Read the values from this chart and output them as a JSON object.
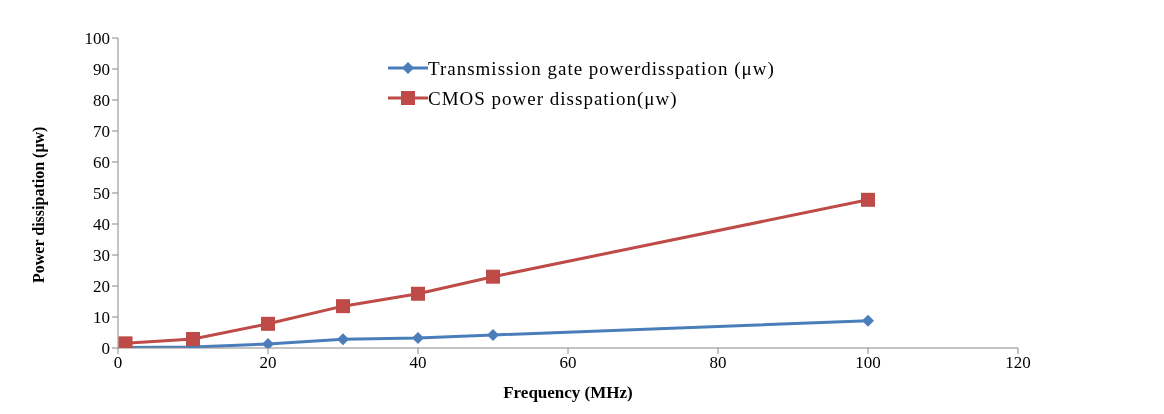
{
  "chart_data": {
    "type": "line",
    "xlabel": "Frequency (MHz)",
    "ylabel": "Power dissipation (μw)",
    "x": [
      1,
      10,
      20,
      30,
      40,
      50,
      100
    ],
    "series": [
      {
        "name": "Transmission gate powerdisspation (μw)",
        "color": "#4a7ebb",
        "marker": "diamond",
        "values": [
          0.2,
          0.3,
          1.3,
          2.8,
          3.2,
          4.2,
          8.8
        ]
      },
      {
        "name": "CMOS power disspation(μw)",
        "color": "#be4b48",
        "marker": "square",
        "values": [
          1.5,
          2.9,
          7.8,
          13.5,
          17.5,
          23,
          47.8
        ]
      }
    ],
    "xlim": [
      0,
      120
    ],
    "xticks": [
      0,
      20,
      40,
      60,
      80,
      100,
      120
    ],
    "ylim": [
      0,
      100
    ],
    "yticks": [
      0,
      10,
      20,
      30,
      40,
      50,
      60,
      70,
      80,
      90,
      100
    ],
    "grid": false,
    "legend": "top"
  }
}
